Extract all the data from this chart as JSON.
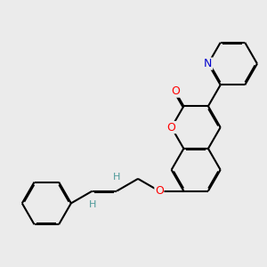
{
  "bg_color": "#ebebeb",
  "bond_color": "#000000",
  "bond_width": 1.5,
  "atom_colors": {
    "O": "#ff0000",
    "N": "#0000cc",
    "H": "#4d9999"
  },
  "figsize": [
    3.0,
    3.0
  ],
  "dpi": 100
}
